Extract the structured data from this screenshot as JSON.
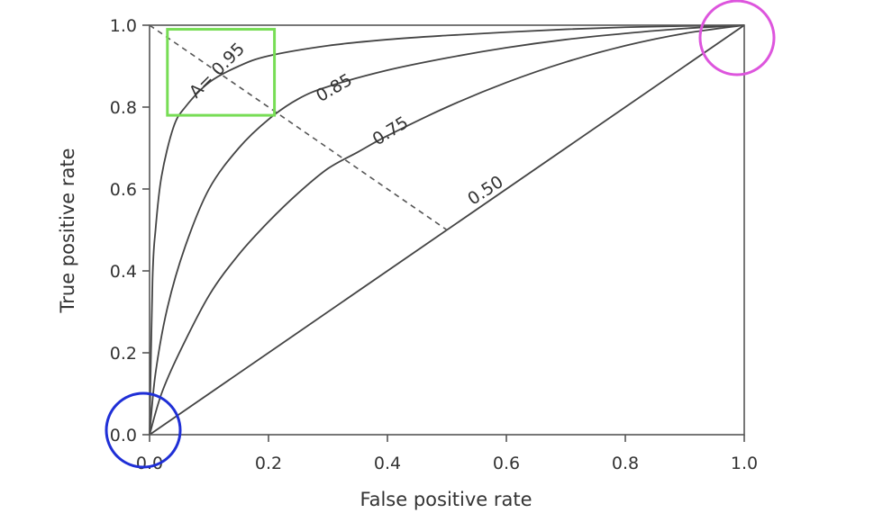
{
  "chart_data": {
    "type": "line",
    "title": "",
    "xlabel": "False positive rate",
    "ylabel": "True positive rate",
    "xlim": [
      0,
      1
    ],
    "ylim": [
      0,
      1
    ],
    "xticks": [
      "0.0",
      "0.2",
      "0.4",
      "0.6",
      "0.8",
      "1.0"
    ],
    "yticks": [
      "0.0",
      "0.2",
      "0.4",
      "0.6",
      "0.8",
      "1.0"
    ],
    "grid": false,
    "series": [
      {
        "name": "A = 0.95",
        "label": "A= 0.95",
        "auc": 0.95,
        "points": [
          [
            0,
            0
          ],
          [
            0.005,
            0.38
          ],
          [
            0.01,
            0.5
          ],
          [
            0.02,
            0.63
          ],
          [
            0.04,
            0.75
          ],
          [
            0.06,
            0.8
          ],
          [
            0.1,
            0.86
          ],
          [
            0.15,
            0.9
          ],
          [
            0.2,
            0.925
          ],
          [
            0.3,
            0.95
          ],
          [
            0.4,
            0.965
          ],
          [
            0.5,
            0.975
          ],
          [
            0.6,
            0.983
          ],
          [
            0.7,
            0.99
          ],
          [
            0.8,
            0.995
          ],
          [
            0.9,
            0.998
          ],
          [
            1,
            1
          ]
        ]
      },
      {
        "name": "A = 0.85",
        "label": "0.85",
        "auc": 0.85,
        "points": [
          [
            0,
            0
          ],
          [
            0.01,
            0.15
          ],
          [
            0.03,
            0.31
          ],
          [
            0.06,
            0.46
          ],
          [
            0.1,
            0.6
          ],
          [
            0.15,
            0.7
          ],
          [
            0.2,
            0.77
          ],
          [
            0.25,
            0.82
          ],
          [
            0.3,
            0.85
          ],
          [
            0.4,
            0.89
          ],
          [
            0.5,
            0.92
          ],
          [
            0.6,
            0.945
          ],
          [
            0.7,
            0.965
          ],
          [
            0.8,
            0.98
          ],
          [
            0.9,
            0.992
          ],
          [
            1,
            1
          ]
        ]
      },
      {
        "name": "A = 0.75",
        "label": "0.75",
        "auc": 0.75,
        "points": [
          [
            0,
            0
          ],
          [
            0.02,
            0.1
          ],
          [
            0.05,
            0.2
          ],
          [
            0.1,
            0.34
          ],
          [
            0.15,
            0.44
          ],
          [
            0.2,
            0.52
          ],
          [
            0.25,
            0.59
          ],
          [
            0.3,
            0.65
          ],
          [
            0.35,
            0.69
          ],
          [
            0.4,
            0.73
          ],
          [
            0.5,
            0.8
          ],
          [
            0.6,
            0.86
          ],
          [
            0.7,
            0.91
          ],
          [
            0.8,
            0.95
          ],
          [
            0.9,
            0.98
          ],
          [
            1,
            1
          ]
        ]
      },
      {
        "name": "A = 0.50",
        "label": "0.50",
        "auc": 0.5,
        "points": [
          [
            0,
            0
          ],
          [
            1,
            1
          ]
        ]
      }
    ],
    "reference_line": {
      "style": "dashed",
      "from": [
        0,
        1
      ],
      "to": [
        0.5,
        0.5
      ]
    },
    "annotations": [
      {
        "type": "rectangle",
        "color": "#77dd55",
        "x_range": [
          0.03,
          0.21
        ],
        "y_range": [
          0.78,
          0.99
        ]
      },
      {
        "type": "circle",
        "color": "#1f2fd6",
        "center": [
          0,
          0
        ]
      },
      {
        "type": "circle",
        "color": "#dd55dd",
        "center": [
          1,
          1
        ]
      }
    ]
  }
}
